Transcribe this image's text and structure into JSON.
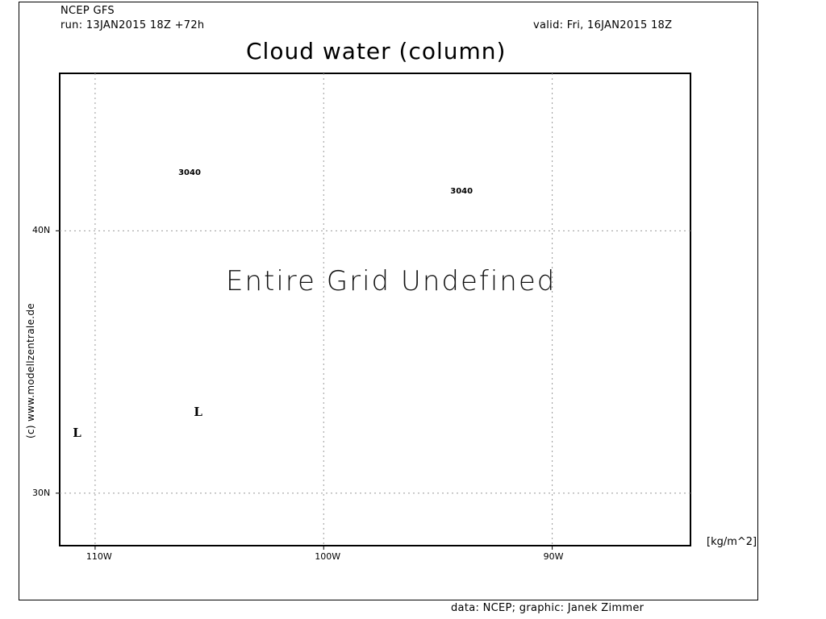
{
  "header": {
    "model": "NCEP GFS",
    "run": "run: 13JAN2015 18Z +72h",
    "valid": "valid: Fri, 16JAN2015 18Z",
    "title": "Cloud water (column)"
  },
  "map": {
    "message": "Entire Grid Undefined",
    "units": "[kg/m^2]",
    "lon_ticks": [
      {
        "label": "110W",
        "lon": -110
      },
      {
        "label": "100W",
        "lon": -100
      },
      {
        "label": "90W",
        "lon": -90
      }
    ],
    "lat_ticks": [
      {
        "label": "40N",
        "lat": 40
      },
      {
        "label": "30N",
        "lat": 30
      }
    ],
    "contour_labels": [
      {
        "text": "3040",
        "lon": -105.9,
        "lat": 42.2
      },
      {
        "text": "3040",
        "lon": -94.0,
        "lat": 41.5
      }
    ],
    "low_markers": [
      {
        "text": "L",
        "lon": -110.8,
        "lat": 32.3
      },
      {
        "text": "L",
        "lon": -105.5,
        "lat": 33.1
      }
    ],
    "lon_range": [
      -111.55,
      -83.95
    ],
    "lat_range": [
      28.0,
      46.0
    ]
  },
  "footer": {
    "credit_vertical": "(c) www.modellzentrale.de",
    "credit": "data: NCEP; graphic: Janek Zimmer"
  }
}
